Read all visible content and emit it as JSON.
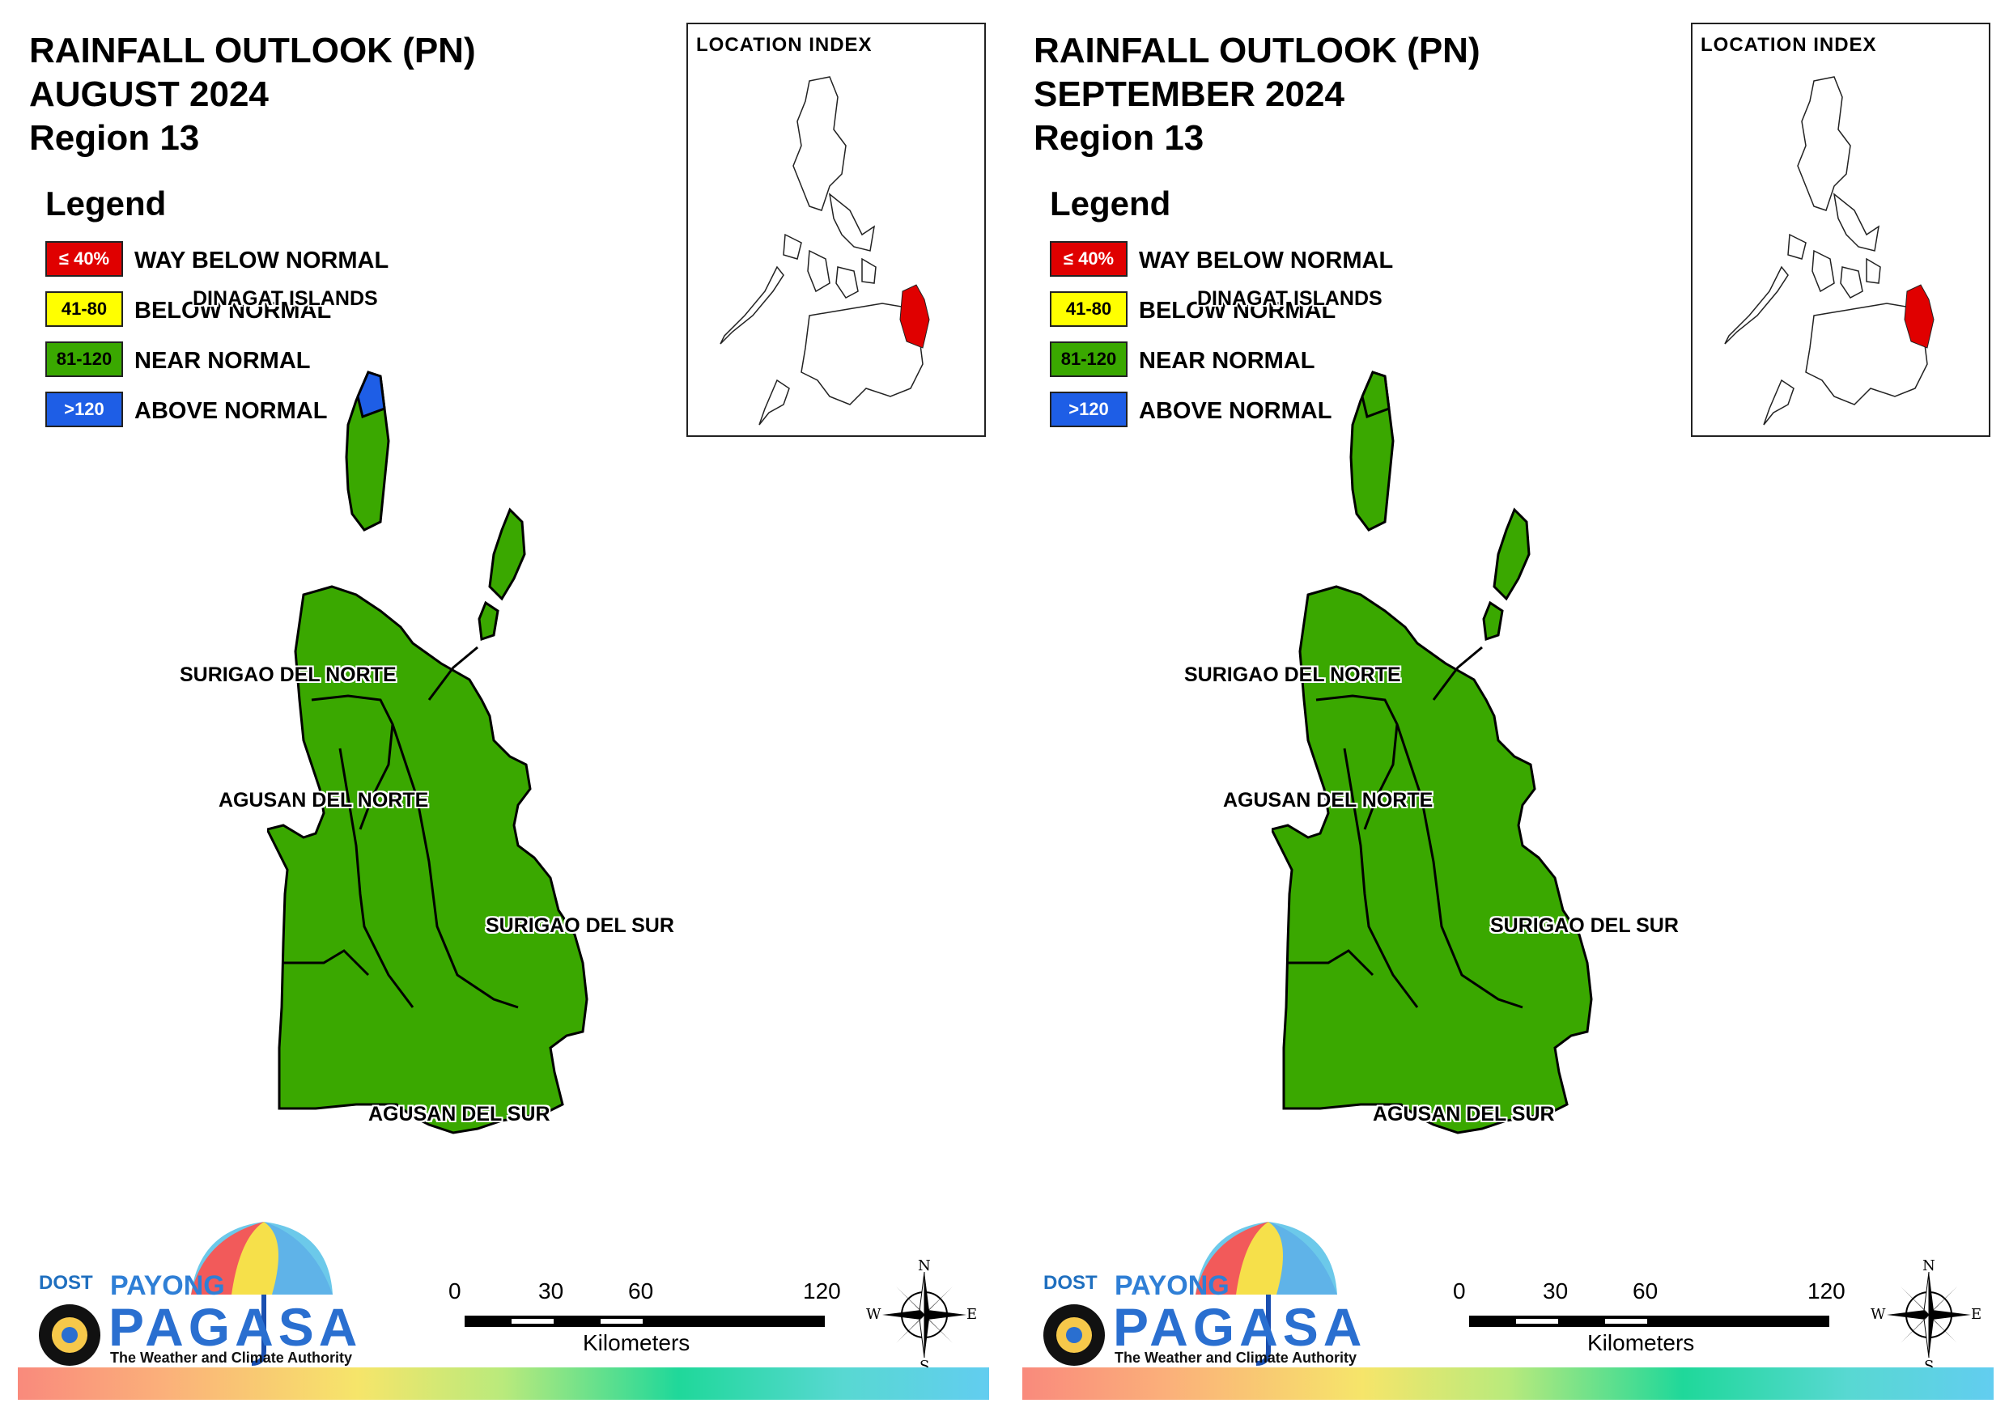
{
  "colors": {
    "way_below": "#e00000",
    "below": "#ffff00",
    "near": "#3aa800",
    "above": "#1e5ee6",
    "highlight": "#e00000"
  },
  "panels": [
    {
      "title": [
        "RAINFALL OUTLOOK (PN)",
        "AUGUST 2024",
        "Region 13"
      ],
      "legend": {
        "title": "Legend",
        "items": [
          {
            "code": "≤ 40%",
            "label": "WAY BELOW NORMAL"
          },
          {
            "code": "41-80",
            "label": "BELOW NORMAL"
          },
          {
            "code": "81-120",
            "label": "NEAR NORMAL"
          },
          {
            "code": ">120",
            "label": "ABOVE NORMAL"
          }
        ]
      },
      "location_index": "LOCATION INDEX",
      "provinces": [
        "DINAGAT ISLANDS",
        "SURIGAO DEL NORTE",
        "AGUSAN DEL NORTE",
        "SURIGAO DEL SUR",
        "AGUSAN DEL SUR"
      ],
      "dinagat_tip_category": "ABOVE NORMAL",
      "logo": {
        "dost": "DOST",
        "payong": "PAYONG",
        "pagasa": "PAGASA",
        "tagline": "The Weather and Climate Authority"
      },
      "scale": {
        "ticks": [
          "0",
          "30",
          "60",
          "120"
        ],
        "unit": "Kilometers"
      },
      "compass": {
        "n": "N",
        "e": "E",
        "s": "S",
        "w": "W"
      }
    },
    {
      "title": [
        "RAINFALL OUTLOOK (PN)",
        "SEPTEMBER 2024",
        "Region 13"
      ],
      "legend": {
        "title": "Legend",
        "items": [
          {
            "code": "≤ 40%",
            "label": "WAY BELOW NORMAL"
          },
          {
            "code": "41-80",
            "label": "BELOW NORMAL"
          },
          {
            "code": "81-120",
            "label": "NEAR NORMAL"
          },
          {
            "code": ">120",
            "label": "ABOVE NORMAL"
          }
        ]
      },
      "location_index": "LOCATION INDEX",
      "provinces": [
        "DINAGAT ISLANDS",
        "SURIGAO DEL NORTE",
        "AGUSAN DEL NORTE",
        "SURIGAO DEL SUR",
        "AGUSAN DEL SUR"
      ],
      "dinagat_tip_category": "NEAR NORMAL",
      "logo": {
        "dost": "DOST",
        "payong": "PAYONG",
        "pagasa": "PAGASA",
        "tagline": "The Weather and Climate Authority"
      },
      "scale": {
        "ticks": [
          "0",
          "30",
          "60",
          "120"
        ],
        "unit": "Kilometers"
      },
      "compass": {
        "n": "N",
        "e": "E",
        "s": "S",
        "w": "W"
      }
    }
  ]
}
